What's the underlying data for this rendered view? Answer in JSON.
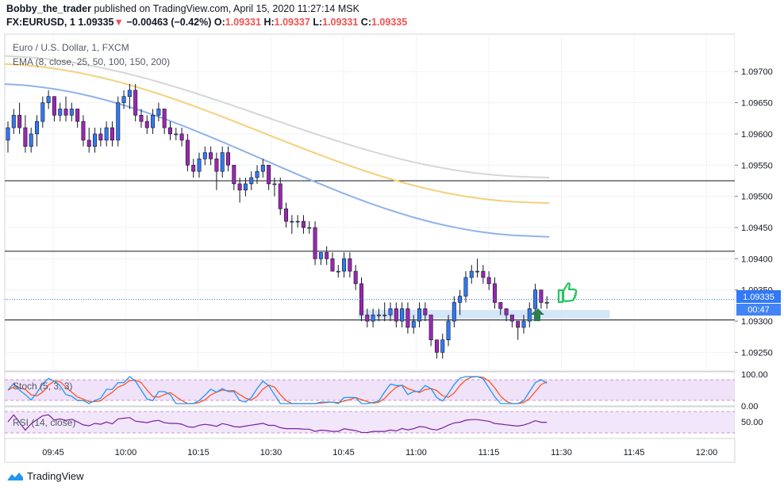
{
  "header": {
    "author": "Bobby_the_trader",
    "published": "published on TradingView.com, April 15, 2020 11:27:14 MSK",
    "symbol": "FX:EURUSD, 1",
    "last": "1.09335",
    "change_arrow": "▼",
    "change": "−0.00463 (−0.42%)",
    "o_label": "O:",
    "o_value": "1.09331",
    "h_label": "H:",
    "h_value": "1.09337",
    "l_label": "L:",
    "l_value": "1.09331",
    "c_label": "C:",
    "c_value": "1.09335"
  },
  "legend": {
    "title": "Euro / U.S. Dollar, 1, FXCM",
    "ema": "EMA (8, close, 25, 50, 100, 150, 200)",
    "stoch": "Stoch (5, 3, 3)",
    "rsi": "RSI (14, close)"
  },
  "price_axis": {
    "ticks": [
      "1.09700",
      "1.09650",
      "1.09600",
      "1.09550",
      "1.09500",
      "1.09450",
      "1.09400",
      "1.09350",
      "1.09300",
      "1.09250"
    ],
    "last_price": "1.09335",
    "countdown": "00:47"
  },
  "stoch_axis": {
    "ticks": [
      "100.00",
      "0.00"
    ]
  },
  "rsi_axis": {
    "ticks": [
      "50.00"
    ]
  },
  "time_axis": {
    "ticks": [
      "09:45",
      "10:00",
      "10:15",
      "10:30",
      "10:45",
      "11:00",
      "11:15",
      "11:30",
      "11:45",
      "12:00"
    ]
  },
  "colors": {
    "bull": "#3179f5",
    "bear": "#9c27b0",
    "ema_gray": "#d6d6d6",
    "ema_yellow": "#f5d07a",
    "ema_blue": "#8fb3ea",
    "stoch_k": "#2196f3",
    "stoch_d": "#ff5722",
    "rsi": "#7b1fa2",
    "zone": "#cfe2f8",
    "thumb": "#22c55e",
    "arrow": "#2e7d52"
  },
  "icons": {
    "thumbs_up": "thumbs-up-icon",
    "arrow": "arrow-up-icon",
    "brand": "tradingview-logo-icon"
  },
  "chart_data": {
    "type": "candlestick",
    "timeframe": "1 minute",
    "x_range": [
      "09:37",
      "12:05"
    ],
    "y_range": [
      1.0922,
      1.0976
    ],
    "candles": [
      [
        1.0959,
        1.0962,
        1.0957,
        1.0961
      ],
      [
        1.0961,
        1.0964,
        1.096,
        1.0963
      ],
      [
        1.0963,
        1.0965,
        1.096,
        1.0961
      ],
      [
        1.0961,
        1.0963,
        1.0957,
        1.0958
      ],
      [
        1.0958,
        1.0961,
        1.0957,
        1.096
      ],
      [
        1.096,
        1.0963,
        1.0958,
        1.0962
      ],
      [
        1.0962,
        1.0966,
        1.0961,
        1.0965
      ],
      [
        1.0965,
        1.0967,
        1.0964,
        1.0966
      ],
      [
        1.0966,
        1.0966,
        1.0962,
        1.0963
      ],
      [
        1.0963,
        1.0965,
        1.0962,
        1.0964
      ],
      [
        1.0964,
        1.0966,
        1.0962,
        1.0963
      ],
      [
        1.0963,
        1.0965,
        1.0962,
        1.0964
      ],
      [
        1.0964,
        1.0964,
        1.0961,
        1.0962
      ],
      [
        1.0962,
        1.0963,
        1.0958,
        1.0959
      ],
      [
        1.0959,
        1.0961,
        1.0957,
        1.0958
      ],
      [
        1.0958,
        1.0961,
        1.0957,
        1.096
      ],
      [
        1.096,
        1.0961,
        1.0958,
        1.0959
      ],
      [
        1.0959,
        1.0962,
        1.0958,
        1.0961
      ],
      [
        1.0961,
        1.0962,
        1.0958,
        1.0959
      ],
      [
        1.0959,
        1.0966,
        1.0958,
        1.0965
      ],
      [
        1.0965,
        1.0967,
        1.0964,
        1.0966
      ],
      [
        1.0966,
        1.0968,
        1.0964,
        1.0967
      ],
      [
        1.0967,
        1.0968,
        1.0962,
        1.0963
      ],
      [
        1.0963,
        1.0964,
        1.0961,
        1.0962
      ],
      [
        1.0962,
        1.0963,
        1.096,
        1.0961
      ],
      [
        1.0961,
        1.0964,
        1.096,
        1.0963
      ],
      [
        1.0963,
        1.0965,
        1.0962,
        1.0964
      ],
      [
        1.0964,
        1.0964,
        1.096,
        1.0961
      ],
      [
        1.0961,
        1.0962,
        1.0959,
        1.096
      ],
      [
        1.096,
        1.0961,
        1.0959,
        1.096
      ],
      [
        1.096,
        1.0961,
        1.0958,
        1.0959
      ],
      [
        1.0959,
        1.096,
        1.0954,
        1.0955
      ],
      [
        1.0955,
        1.0956,
        1.0953,
        1.0954
      ],
      [
        1.0954,
        1.0957,
        1.0953,
        1.0956
      ],
      [
        1.0956,
        1.0958,
        1.0955,
        1.0957
      ],
      [
        1.0957,
        1.0958,
        1.0955,
        1.0956
      ],
      [
        1.0956,
        1.0957,
        1.0951,
        1.0954
      ],
      [
        1.0954,
        1.0958,
        1.0953,
        1.0957
      ],
      [
        1.0957,
        1.0958,
        1.0954,
        1.0955
      ],
      [
        1.0955,
        1.0955,
        1.0951,
        1.0952
      ],
      [
        1.0952,
        1.0953,
        1.0949,
        1.0951
      ],
      [
        1.0951,
        1.0953,
        1.095,
        1.0952
      ],
      [
        1.0952,
        1.0954,
        1.0951,
        1.0953
      ],
      [
        1.0953,
        1.0955,
        1.0952,
        1.0954
      ],
      [
        1.0954,
        1.0956,
        1.0953,
        1.0955
      ],
      [
        1.0955,
        1.0955,
        1.0951,
        1.0952
      ],
      [
        1.0952,
        1.0953,
        1.095,
        1.0952
      ],
      [
        1.0952,
        1.0953,
        1.0947,
        1.0948
      ],
      [
        1.0948,
        1.0949,
        1.0945,
        1.0946
      ],
      [
        1.0946,
        1.0947,
        1.0944,
        1.0946
      ],
      [
        1.0946,
        1.0947,
        1.0945,
        1.0946
      ],
      [
        1.0946,
        1.0947,
        1.0944,
        1.0945
      ],
      [
        1.0945,
        1.0946,
        1.0944,
        1.0945
      ],
      [
        1.0945,
        1.0946,
        1.0939,
        1.094
      ],
      [
        1.094,
        1.0941,
        1.0939,
        1.0941
      ],
      [
        1.0941,
        1.0942,
        1.0939,
        1.094
      ],
      [
        1.094,
        1.0941,
        1.0938,
        1.0938
      ],
      [
        1.0938,
        1.0939,
        1.0937,
        1.0938
      ],
      [
        1.0938,
        1.0941,
        1.0937,
        1.094
      ],
      [
        1.094,
        1.0941,
        1.0937,
        1.0938
      ],
      [
        1.0938,
        1.0939,
        1.0935,
        1.0936
      ],
      [
        1.0936,
        1.0937,
        1.093,
        1.0931
      ],
      [
        1.0931,
        1.0932,
        1.0929,
        1.093
      ],
      [
        1.093,
        1.0932,
        1.0929,
        1.0931
      ],
      [
        1.0931,
        1.0932,
        1.093,
        1.0931
      ],
      [
        1.0931,
        1.0933,
        1.093,
        1.0931
      ],
      [
        1.0931,
        1.0933,
        1.093,
        1.0932
      ],
      [
        1.0932,
        1.0933,
        1.0929,
        1.093
      ],
      [
        1.093,
        1.0933,
        1.0929,
        1.0932
      ],
      [
        1.0932,
        1.0933,
        1.0928,
        1.0929
      ],
      [
        1.0929,
        1.0931,
        1.0928,
        1.093
      ],
      [
        1.093,
        1.0933,
        1.0929,
        1.0932
      ],
      [
        1.0932,
        1.0933,
        1.093,
        1.0931
      ],
      [
        1.0931,
        1.0931,
        1.0926,
        1.0927
      ],
      [
        1.0927,
        1.0927,
        1.0924,
        1.0925
      ],
      [
        1.0925,
        1.0928,
        1.0924,
        1.0927
      ],
      [
        1.0927,
        1.0931,
        1.0926,
        1.093
      ],
      [
        1.093,
        1.0934,
        1.0929,
        1.0933
      ],
      [
        1.0933,
        1.0935,
        1.0931,
        1.0934
      ],
      [
        1.0934,
        1.0938,
        1.0933,
        1.0937
      ],
      [
        1.0937,
        1.0939,
        1.0936,
        1.0938
      ],
      [
        1.0938,
        1.094,
        1.0937,
        1.0938
      ],
      [
        1.0938,
        1.0939,
        1.0936,
        1.0937
      ],
      [
        1.0937,
        1.0938,
        1.0935,
        1.0936
      ],
      [
        1.0936,
        1.0937,
        1.0932,
        1.0933
      ],
      [
        1.0933,
        1.0933,
        1.0931,
        1.0932
      ],
      [
        1.0932,
        1.0932,
        1.093,
        1.0931
      ],
      [
        1.0931,
        1.0931,
        1.0929,
        1.093
      ],
      [
        1.093,
        1.093,
        1.0927,
        1.0929
      ],
      [
        1.0929,
        1.0931,
        1.0928,
        1.093
      ],
      [
        1.093,
        1.0933,
        1.0929,
        1.0932
      ],
      [
        1.0932,
        1.0936,
        1.0931,
        1.0935
      ],
      [
        1.0935,
        1.0935,
        1.0932,
        1.0933
      ],
      [
        1.0933,
        1.0934,
        1.0932,
        1.0933
      ]
    ],
    "ema_series": [
      {
        "period": 100,
        "color": "#8fb3ea",
        "start": 1.0968,
        "end": 1.09435
      },
      {
        "period": 150,
        "color": "#f5d07a",
        "start": 1.09712,
        "end": 1.09489
      },
      {
        "period": 200,
        "color": "#d6d6d6",
        "start": 1.09725,
        "end": 1.0953
      }
    ],
    "horizontal_levels": [
      1.09525,
      1.09412,
      1.09302
    ],
    "support_zone": [
      1.09304,
      1.09318
    ],
    "stoch_range": [
      0,
      100
    ],
    "rsi_reference": 50
  }
}
